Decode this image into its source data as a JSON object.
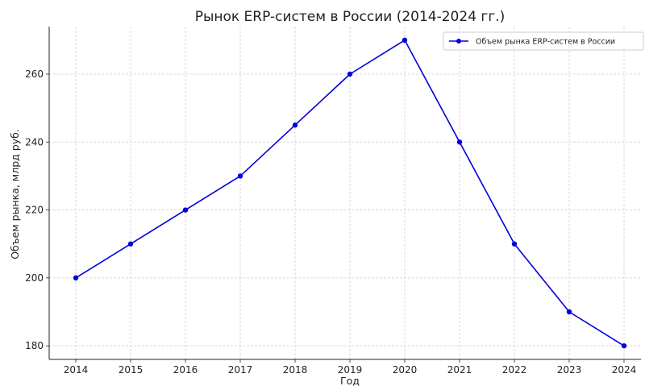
{
  "chart_data": {
    "type": "line",
    "title": "Рынок ERP-систем в России (2014-2024 гг.)",
    "xlabel": "Год",
    "ylabel": "Объем рынка, млрд руб.",
    "x": [
      "2014",
      "2015",
      "2016",
      "2017",
      "2018",
      "2019",
      "2020",
      "2021",
      "2022",
      "2023",
      "2024"
    ],
    "series": [
      {
        "name": "Объем рынка ERP-систем в России",
        "values": [
          200,
          210,
          220,
          230,
          245,
          260,
          270,
          240,
          210,
          190,
          180
        ],
        "color": "#0000dd"
      }
    ],
    "yticks": [
      180,
      200,
      220,
      240,
      260
    ],
    "ylim": [
      176,
      274
    ],
    "grid": true,
    "legend": "top-right",
    "marker": "circle"
  }
}
